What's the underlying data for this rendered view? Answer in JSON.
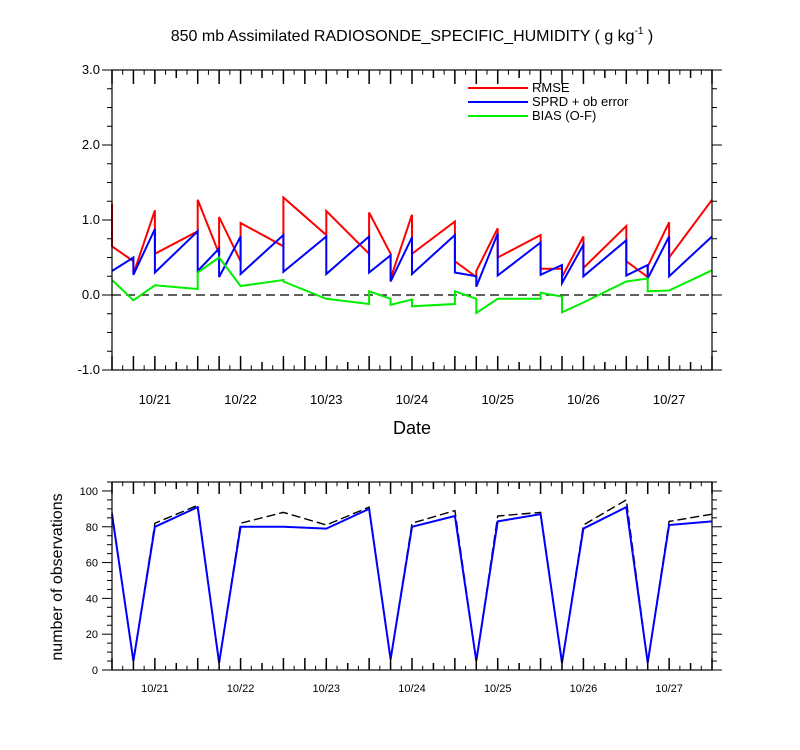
{
  "chart_data": [
    {
      "type": "line",
      "title": "850 mb Assimilated RADIOSONDE_SPECIFIC_HUMIDITY ( g kg",
      "title_unit_superscript": "-1",
      "title_close": " )",
      "xlabel": "Date",
      "ylabel": "",
      "x_unit": "days in October",
      "xlim": [
        20.5,
        27.5
      ],
      "ylim": [
        -1.0,
        3.0
      ],
      "yticks": [
        -1.0,
        0.0,
        1.0,
        2.0,
        3.0
      ],
      "ytick_labels": [
        "-1.0",
        "0.0",
        "1.0",
        "2.0",
        "3.0"
      ],
      "xticks": [
        21,
        22,
        23,
        24,
        25,
        26,
        27
      ],
      "xtick_labels": [
        "10/21",
        "10/22",
        "10/23",
        "10/24",
        "10/25",
        "10/26",
        "10/27"
      ],
      "zero_line": true,
      "legend_position": "top-right",
      "colors": {
        "rmse": "#ff0000",
        "spread": "#0000ff",
        "bias": "#00ee00",
        "zero": "#000000"
      },
      "series": [
        {
          "name": "RMSE",
          "key": "rmse",
          "x": [
            20.5,
            20.5,
            20.75,
            20.75,
            21,
            21,
            21.5,
            21.5,
            21.75,
            21.75,
            22,
            22,
            22.5,
            22.5,
            23,
            23,
            23.5,
            23.5,
            23.75,
            23.75,
            24,
            24,
            24.5,
            24.5,
            24.75,
            24.75,
            25,
            25,
            25.5,
            25.5,
            25.75,
            25.75,
            26,
            26,
            26.5,
            26.5,
            26.75,
            26.75,
            27,
            27,
            27.5
          ],
          "y": [
            1.22,
            0.65,
            0.45,
            0.28,
            1.13,
            0.55,
            0.85,
            1.27,
            0.55,
            1.04,
            0.45,
            0.96,
            0.65,
            1.3,
            0.8,
            1.12,
            0.55,
            1.1,
            0.55,
            0.22,
            1.07,
            0.55,
            0.98,
            0.45,
            0.24,
            0.32,
            0.89,
            0.5,
            0.8,
            0.35,
            0.35,
            0.24,
            0.78,
            0.36,
            0.92,
            0.45,
            0.24,
            0.38,
            0.97,
            0.5,
            1.27
          ]
        },
        {
          "name": "SPRD + ob error",
          "key": "spread",
          "x": [
            20.5,
            20.75,
            20.75,
            21,
            21,
            21.5,
            21.5,
            21.75,
            21.75,
            22,
            22,
            22.5,
            22.5,
            23,
            23,
            23.5,
            23.5,
            23.75,
            23.75,
            24,
            24,
            24.5,
            24.5,
            24.75,
            24.75,
            25,
            25,
            25.5,
            25.5,
            25.75,
            25.75,
            26,
            26,
            26.5,
            26.5,
            26.75,
            26.75,
            27,
            27,
            27.5
          ],
          "y": [
            0.32,
            0.5,
            0.27,
            0.88,
            0.3,
            0.85,
            0.32,
            0.62,
            0.24,
            0.78,
            0.28,
            0.8,
            0.31,
            0.78,
            0.28,
            0.78,
            0.3,
            0.53,
            0.18,
            0.77,
            0.28,
            0.8,
            0.3,
            0.25,
            0.11,
            0.82,
            0.26,
            0.7,
            0.27,
            0.4,
            0.16,
            0.67,
            0.25,
            0.73,
            0.26,
            0.4,
            0.22,
            0.78,
            0.25,
            0.78
          ]
        },
        {
          "name": "BIAS (O-F)",
          "key": "bias",
          "x": [
            20.5,
            20.75,
            21,
            21.5,
            21.5,
            21.75,
            22,
            22.5,
            22.5,
            23,
            23.5,
            23.5,
            23.75,
            23.75,
            24,
            24,
            24.5,
            24.5,
            24.75,
            24.75,
            25,
            25.5,
            25.5,
            25.75,
            25.75,
            26,
            26.5,
            26.75,
            26.75,
            27,
            27.5
          ],
          "y": [
            0.2,
            -0.07,
            0.13,
            0.08,
            0.3,
            0.5,
            0.12,
            0.2,
            0.18,
            -0.05,
            -0.12,
            0.05,
            -0.05,
            -0.13,
            -0.06,
            -0.15,
            -0.12,
            0.05,
            -0.05,
            -0.24,
            -0.05,
            -0.05,
            0.03,
            -0.02,
            -0.23,
            -0.1,
            0.18,
            0.22,
            0.05,
            0.06,
            0.33
          ]
        }
      ]
    },
    {
      "type": "line",
      "title": "",
      "xlabel": "",
      "ylabel": "number of observations",
      "xlim": [
        20.5,
        27.5
      ],
      "ylim": [
        0,
        105
      ],
      "yticks": [
        0,
        20,
        40,
        60,
        80,
        100
      ],
      "ytick_labels": [
        "0",
        "20",
        "40",
        "60",
        "80",
        "100"
      ],
      "xticks": [
        21,
        22,
        23,
        24,
        25,
        26,
        27
      ],
      "xtick_labels": [
        "10/21",
        "10/22",
        "10/23",
        "10/24",
        "10/25",
        "10/26",
        "10/27"
      ],
      "colors": {
        "possible": "#000000",
        "assimilated": "#0000ff"
      },
      "series": [
        {
          "key": "possible",
          "style": "dashed",
          "x": [
            20.5,
            20.75,
            21,
            21.5,
            21.75,
            22,
            22.5,
            23,
            23.5,
            23.75,
            24,
            24.5,
            24.75,
            25,
            25.5,
            25.75,
            26,
            26.5,
            26.75,
            27,
            27.5
          ],
          "y": [
            88,
            5,
            82,
            92,
            4,
            82,
            88,
            81,
            91,
            6,
            82,
            89,
            5,
            86,
            88,
            4,
            81,
            95,
            4,
            83,
            87
          ]
        },
        {
          "key": "assimilated",
          "style": "solid",
          "x": [
            20.5,
            20.75,
            21,
            21.5,
            21.75,
            22,
            22.5,
            23,
            23.5,
            23.75,
            24,
            24.5,
            24.75,
            25,
            25.5,
            25.75,
            26,
            26.5,
            26.75,
            27,
            27.5
          ],
          "y": [
            87,
            5,
            80,
            91,
            4,
            80,
            80,
            79,
            90,
            6,
            80,
            86,
            5,
            83,
            87,
            4,
            79,
            91,
            4,
            81,
            83
          ]
        }
      ]
    }
  ]
}
